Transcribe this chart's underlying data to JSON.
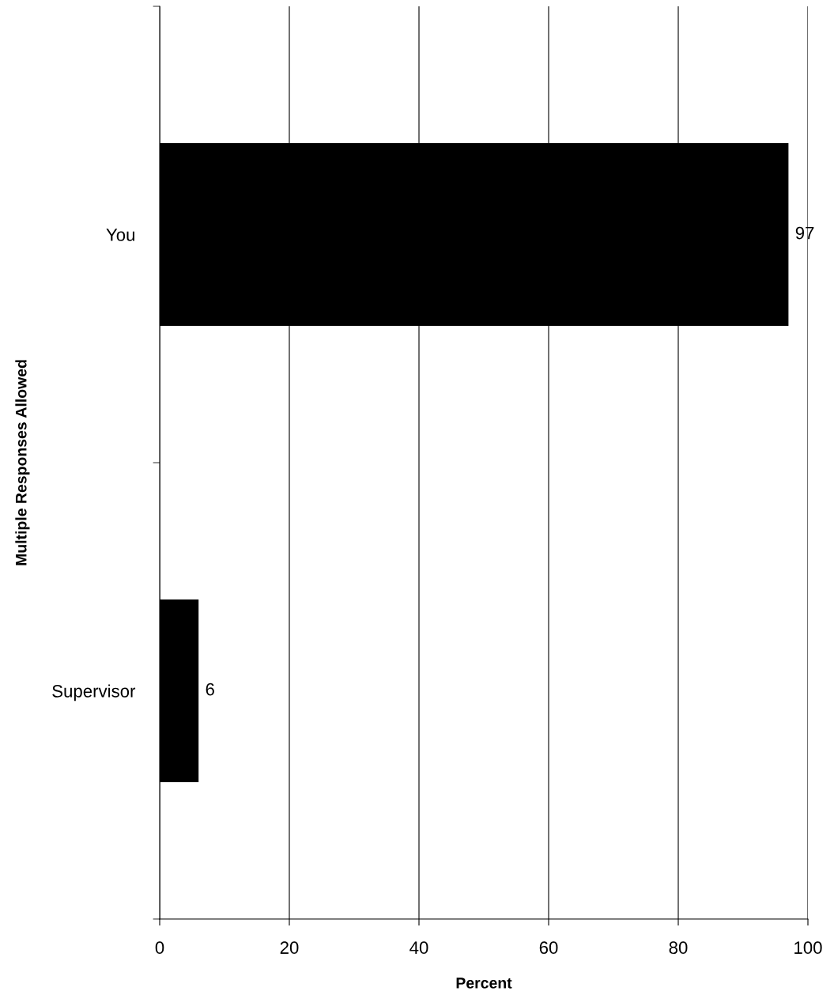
{
  "chart_data": {
    "type": "bar",
    "orientation": "horizontal",
    "xlabel": "Percent",
    "ylabel": "Multiple Responses Allowed",
    "categories": [
      "You",
      "Supervisor"
    ],
    "values": [
      97,
      6
    ],
    "color": "#000000",
    "xlim": [
      0,
      100
    ],
    "xticks": [
      0,
      20,
      40,
      60,
      80,
      100
    ],
    "grid": "x",
    "data_labels": true,
    "legend": false
  }
}
